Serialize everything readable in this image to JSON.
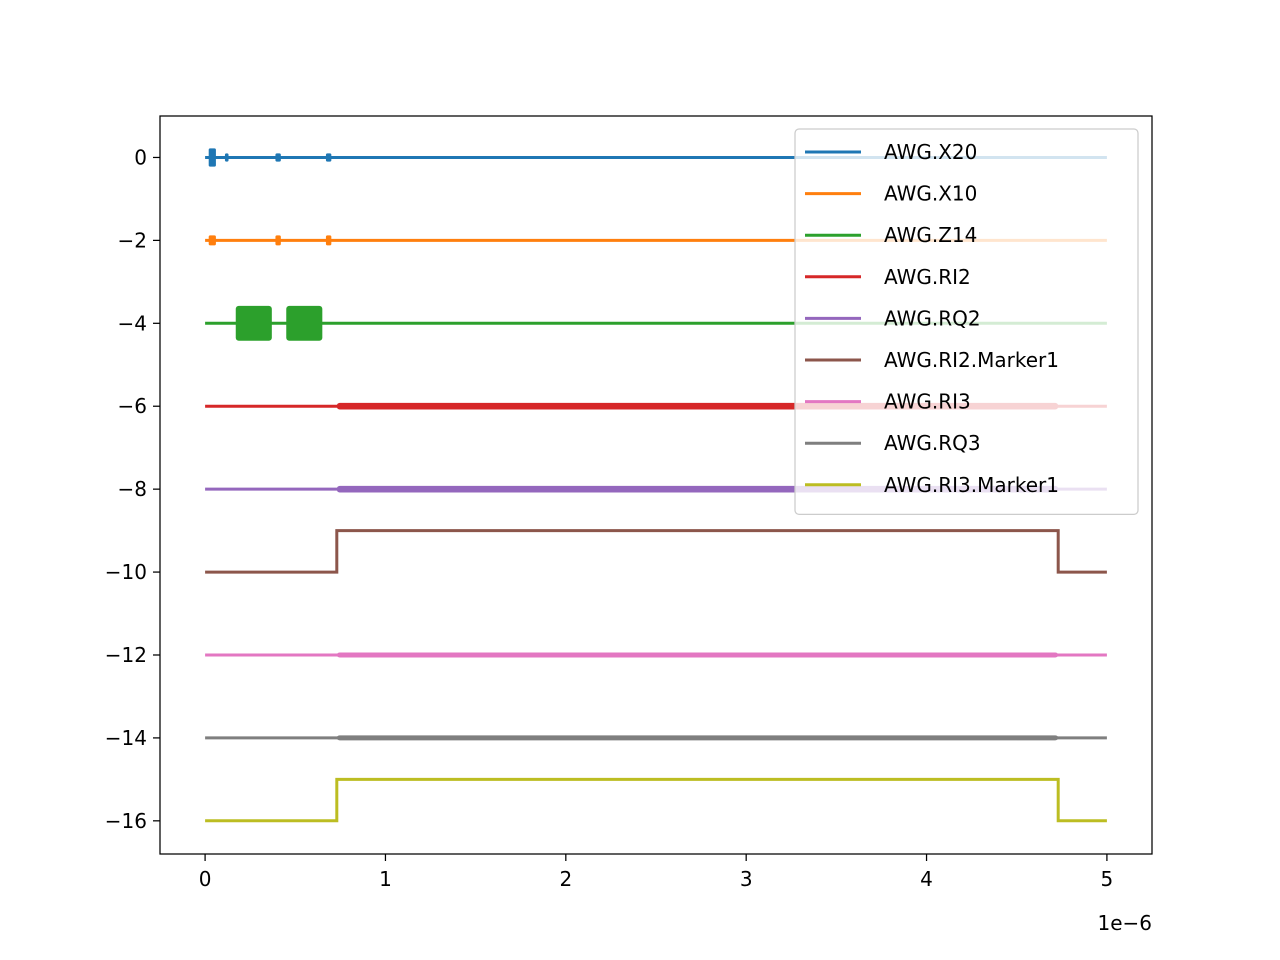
{
  "chart_data": {
    "type": "line",
    "title": "",
    "xlabel": "",
    "ylabel": "",
    "x_offset_text": "1e−6",
    "xlim": [
      -0.25,
      5.25
    ],
    "ylim": [
      -16.8,
      1.0
    ],
    "x_ticks": [
      0,
      1,
      2,
      3,
      4,
      5
    ],
    "x_tick_labels": [
      "0",
      "1",
      "2",
      "3",
      "4",
      "5"
    ],
    "y_ticks": [
      0,
      -2,
      -4,
      -6,
      -8,
      -10,
      -12,
      -14,
      -16
    ],
    "y_tick_labels": [
      "0",
      "−2",
      "−4",
      "−6",
      "−8",
      "−10",
      "−12",
      "−14",
      "−16"
    ],
    "grid": false,
    "legend_position": "upper-right",
    "series": [
      {
        "name": "AWG.X20",
        "color": "#1f77b4",
        "points": [
          [
            0,
            0
          ],
          [
            5,
            0
          ]
        ],
        "bursts": [
          {
            "x": [
              0.02,
              0.06
            ],
            "amp": 0.22
          },
          {
            "x": [
              0.11,
              0.13
            ],
            "amp": 0.1
          },
          {
            "x": [
              0.39,
              0.42
            ],
            "amp": 0.1
          },
          {
            "x": [
              0.67,
              0.7
            ],
            "amp": 0.1
          }
        ]
      },
      {
        "name": "AWG.X10",
        "color": "#ff7f0e",
        "points": [
          [
            0,
            -2
          ],
          [
            5,
            -2
          ]
        ],
        "bursts": [
          {
            "x": [
              0.02,
              0.06
            ],
            "amp": 0.12
          },
          {
            "x": [
              0.39,
              0.42
            ],
            "amp": 0.12
          },
          {
            "x": [
              0.67,
              0.7
            ],
            "amp": 0.12
          }
        ]
      },
      {
        "name": "AWG.Z14",
        "color": "#2ca02c",
        "points": [
          [
            0,
            -4
          ],
          [
            5,
            -4
          ]
        ],
        "bursts": [
          {
            "x": [
              0.17,
              0.37
            ],
            "amp": 0.42
          },
          {
            "x": [
              0.45,
              0.65
            ],
            "amp": 0.42
          }
        ]
      },
      {
        "name": "AWG.RI2",
        "color": "#d62728",
        "points": [
          [
            0,
            -6
          ],
          [
            5,
            -6
          ]
        ],
        "bursts": [
          {
            "x": [
              0.73,
              4.73
            ],
            "amp": 0.08
          }
        ]
      },
      {
        "name": "AWG.RQ2",
        "color": "#9467bd",
        "points": [
          [
            0,
            -8
          ],
          [
            5,
            -8
          ]
        ],
        "bursts": [
          {
            "x": [
              0.73,
              4.73
            ],
            "amp": 0.08
          }
        ]
      },
      {
        "name": "AWG.RI2.Marker1",
        "color": "#8c564b",
        "points": [
          [
            0,
            -10
          ],
          [
            0.73,
            -10
          ],
          [
            0.73,
            -9
          ],
          [
            4.73,
            -9
          ],
          [
            4.73,
            -10
          ],
          [
            5,
            -10
          ]
        ],
        "bursts": []
      },
      {
        "name": "AWG.RI3",
        "color": "#e377c2",
        "points": [
          [
            0,
            -12
          ],
          [
            5,
            -12
          ]
        ],
        "bursts": [
          {
            "x": [
              0.73,
              4.73
            ],
            "amp": 0.06
          }
        ]
      },
      {
        "name": "AWG.RQ3",
        "color": "#7f7f7f",
        "points": [
          [
            0,
            -14
          ],
          [
            5,
            -14
          ]
        ],
        "bursts": [
          {
            "x": [
              0.73,
              4.73
            ],
            "amp": 0.06
          }
        ]
      },
      {
        "name": "AWG.RI3.Marker1",
        "color": "#bcbd22",
        "points": [
          [
            0,
            -16
          ],
          [
            0.73,
            -16
          ],
          [
            0.73,
            -15
          ],
          [
            4.73,
            -15
          ],
          [
            4.73,
            -16
          ],
          [
            5,
            -16
          ]
        ],
        "bursts": []
      }
    ]
  }
}
